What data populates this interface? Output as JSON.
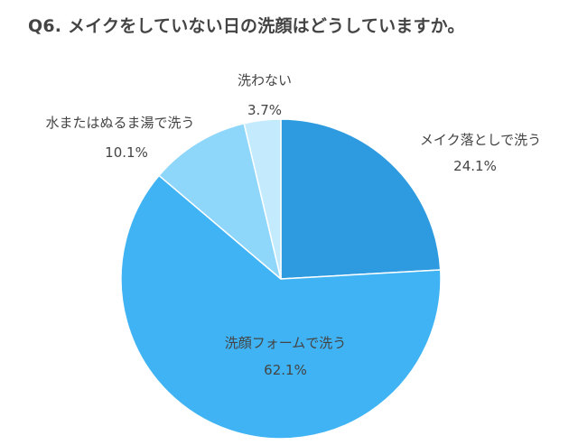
{
  "chart_data": {
    "type": "pie",
    "title": "Q6. メイクをしていない日の洗顔はどうしていますか。",
    "colors": {
      "text": "#444444"
    },
    "slices": [
      {
        "label": "メイク落としで洗う",
        "value": 24.1,
        "value_label": "24.1%",
        "color": "#2e9be0"
      },
      {
        "label": "洗顔フォームで洗う",
        "value": 62.1,
        "value_label": "62.1%",
        "color": "#3fb3f3"
      },
      {
        "label": "水またはぬるま湯で洗う",
        "value": 10.1,
        "value_label": "10.1%",
        "color": "#8fd6fb"
      },
      {
        "label": "洗わない",
        "value": 3.7,
        "value_label": "3.7%",
        "color": "#c4ebfd"
      }
    ]
  }
}
